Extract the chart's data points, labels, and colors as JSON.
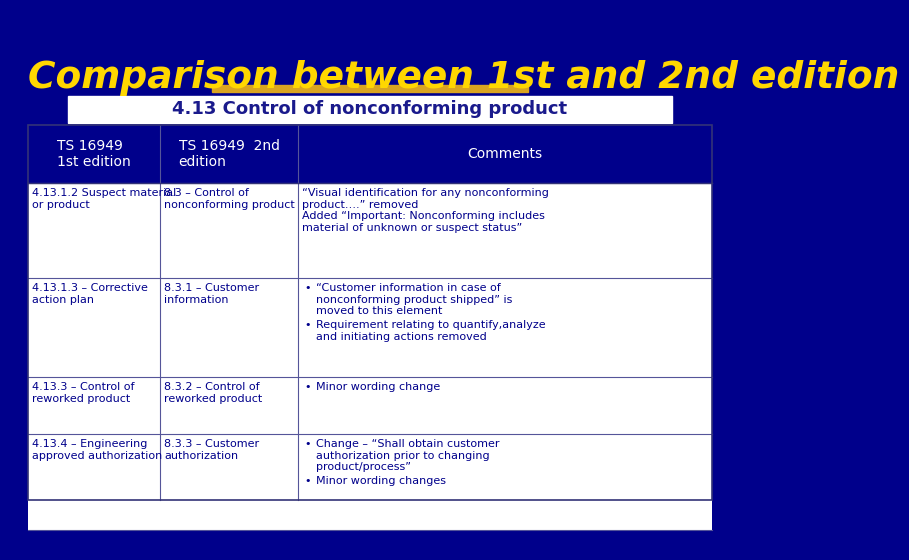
{
  "title": "Comparison between 1st and 2nd edition",
  "subtitle": "4.13 Control of nonconforming product",
  "bg_color": "#00008B",
  "title_color": "#FFD700",
  "subtitle_color": "#1a1a8c",
  "header_bg": "#00008B",
  "header_color": "#FFFFFF",
  "row_text_color": "#00008B",
  "col1_header": "TS 16949\n1st edition",
  "col2_header": "TS 16949  2nd\nedition",
  "col3_header": "Comments",
  "rows": [
    {
      "col1": "4.13.1.2 Suspect material\nor product",
      "col2": "8.3 – Control of\nnonconforming product",
      "col3": "“Visual identification for any nonconforming\nproduct….” removed\nAdded “Important: Nonconforming includes\nmaterial of unknown or suspect status”",
      "bullets": false
    },
    {
      "col1": "4.13.1.3 – Corrective\naction plan",
      "col2": "8.3.1 – Customer\ninformation",
      "col3": [
        "“Customer information in case of\nnonconforming product shipped” is\nmoved to this element",
        "Requirement relating to quantify,analyze\nand initiating actions removed"
      ],
      "bullets": true
    },
    {
      "col1": "4.13.3 – Control of\nreworked product",
      "col2": "8.3.2 – Control of\nreworked product",
      "col3": [
        "Minor wording change"
      ],
      "bullets": true
    },
    {
      "col1": "4.13.4 – Engineering\napproved authorization",
      "col2": "8.3.3 – Customer\nauthorization",
      "col3": [
        "Change – “Shall obtain customer\nauthorization prior to changing\nproduct/process”",
        "Minor wording changes"
      ],
      "bullets": true
    }
  ]
}
